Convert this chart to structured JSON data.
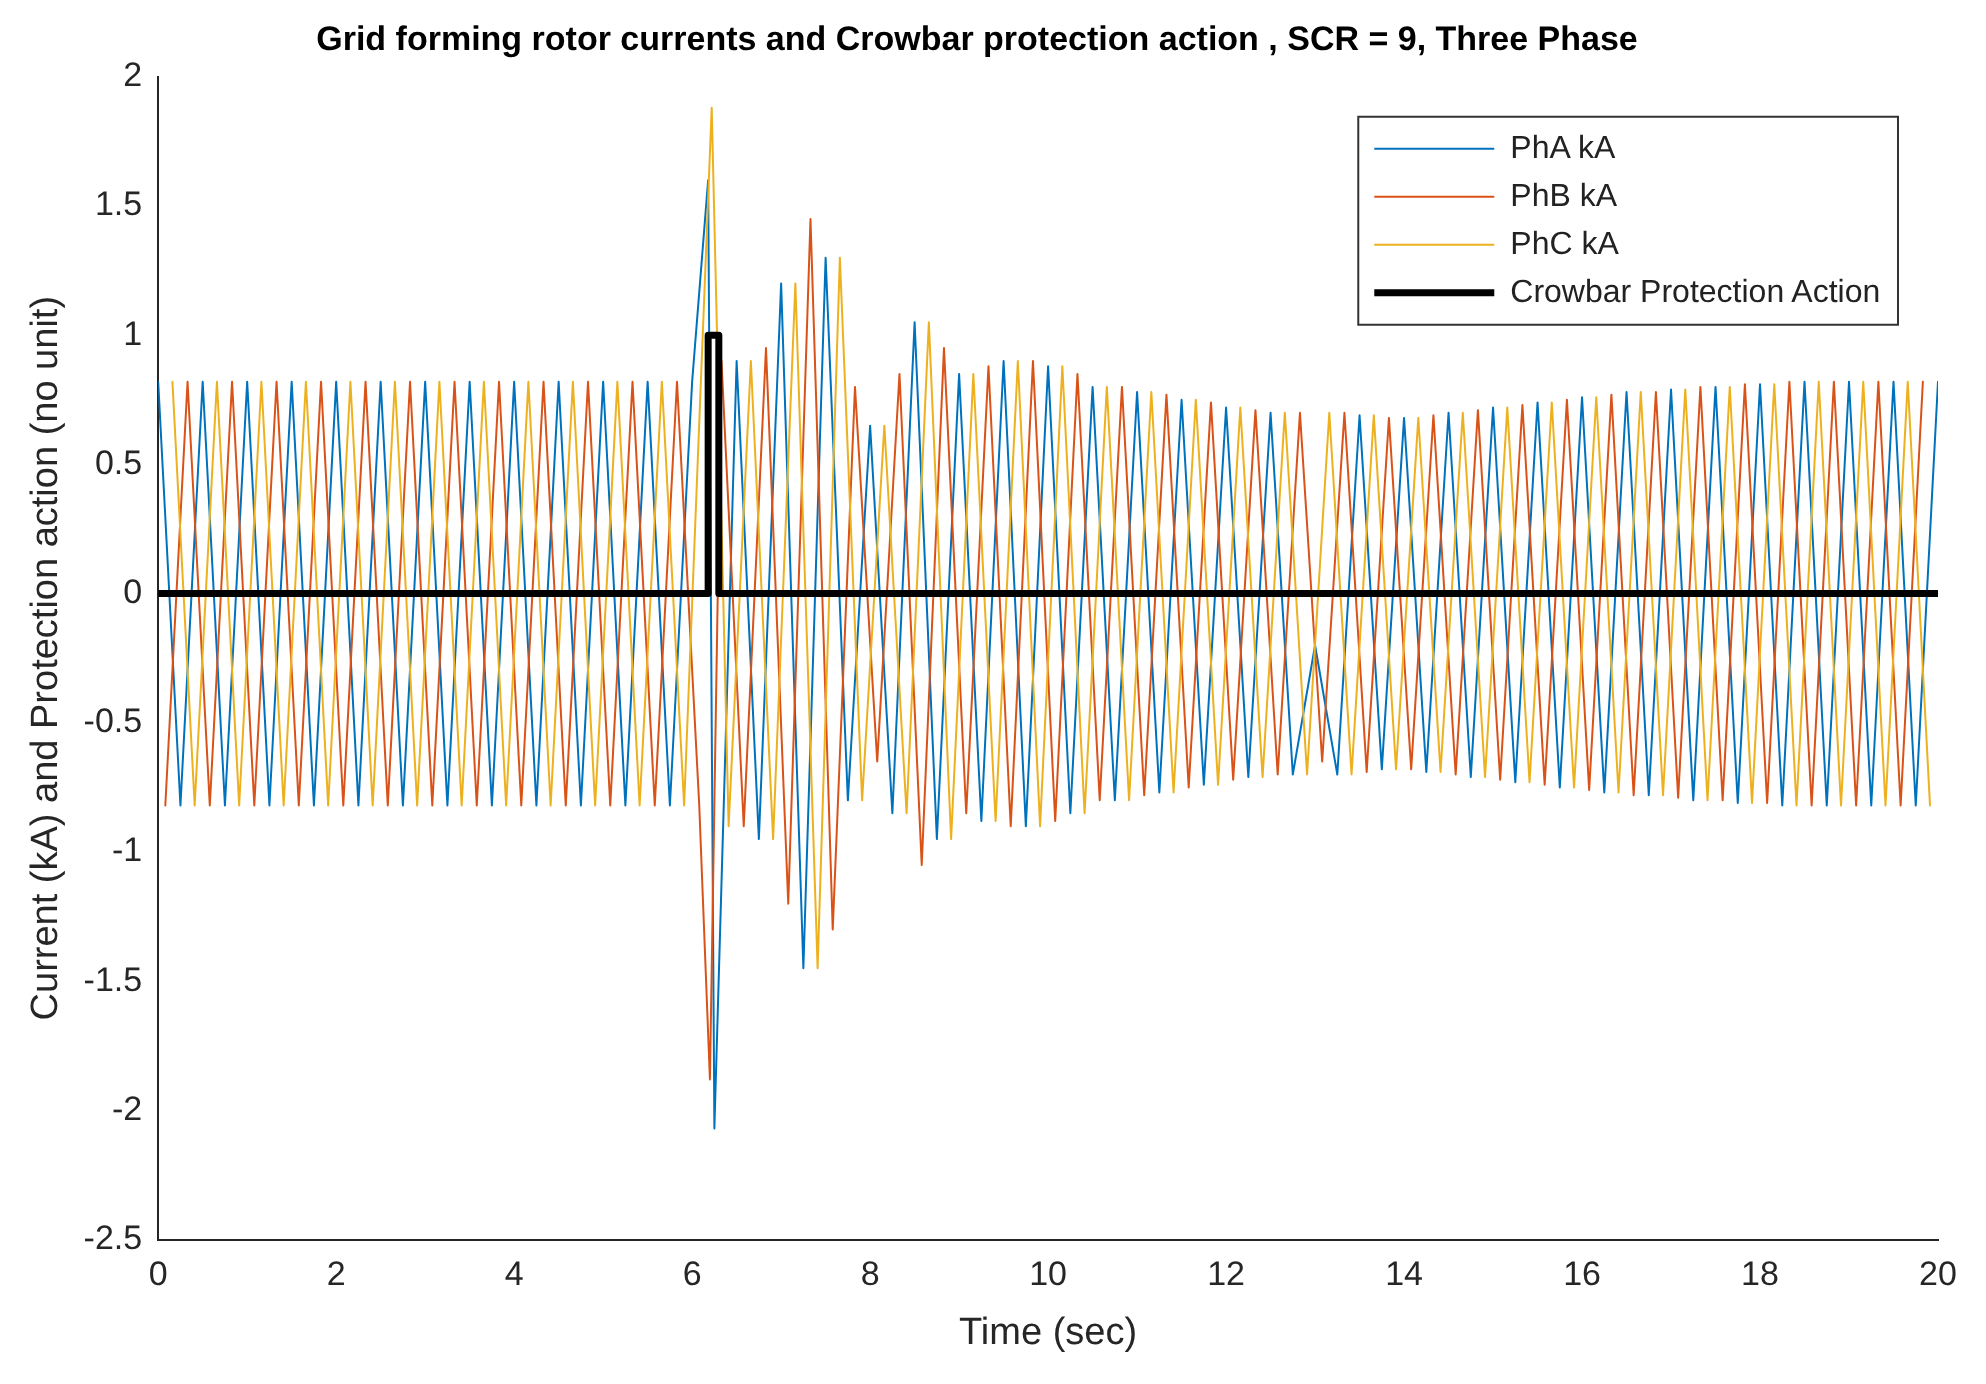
{
  "chart_data": {
    "type": "line",
    "title": "Grid forming rotor currents and Crowbar protection action , SCR = 9, Three Phase",
    "xlabel": "Time (sec)",
    "ylabel": "Current (kA) and Protection action (no unit)",
    "xlim": [
      0,
      20
    ],
    "xticks": [
      0,
      2,
      4,
      6,
      8,
      10,
      12,
      14,
      16,
      18,
      20
    ],
    "ylim": [
      -2.5,
      2
    ],
    "yticks": [
      -2.5,
      -2,
      -1.5,
      -1,
      -0.5,
      0,
      0.5,
      1,
      1.5,
      2
    ],
    "grid": false,
    "legend": "top right",
    "marker": "none",
    "line_style": "solid",
    "series": [
      {
        "name": "PhA kA",
        "color": "#0072bd",
        "x": [
          0,
          0.25,
          0.5,
          0.75,
          1,
          1.25,
          1.5,
          1.75,
          2,
          2.25,
          2.5,
          2.75,
          3,
          3.25,
          3.5,
          3.75,
          4,
          4.25,
          4.5,
          4.75,
          5,
          5.25,
          5.5,
          5.75,
          6,
          6.18,
          6.25,
          6.5,
          6.75,
          7,
          7.25,
          7.5,
          7.75,
          8,
          8.25,
          8.5,
          8.75,
          9,
          9.25,
          9.5,
          9.75,
          10,
          10.25,
          10.5,
          10.75,
          11,
          11.25,
          11.5,
          11.75,
          12,
          12.25,
          12.5,
          12.75,
          13,
          13.25,
          13.5,
          13.75,
          14,
          14.25,
          14.5,
          14.75,
          15,
          15.25,
          15.5,
          15.75,
          16,
          16.25,
          16.5,
          16.75,
          17,
          17.25,
          17.5,
          17.75,
          18,
          18.25,
          18.5,
          18.75,
          19,
          19.25,
          19.5,
          19.75,
          20
        ],
        "values": [
          0.82,
          -0.82,
          0.82,
          -0.82,
          0.82,
          -0.82,
          0.82,
          -0.82,
          0.82,
          -0.82,
          0.82,
          -0.82,
          0.82,
          -0.82,
          0.82,
          -0.82,
          0.82,
          -0.82,
          0.82,
          -0.82,
          0.82,
          -0.82,
          0.82,
          -0.82,
          0.82,
          1.6,
          -2.07,
          0.9,
          -0.95,
          1.2,
          -1.45,
          1.3,
          -0.8,
          0.65,
          -0.85,
          1.05,
          -0.95,
          0.85,
          -0.88,
          0.9,
          -0.9,
          0.88,
          -0.85,
          0.8,
          -0.8,
          0.78,
          -0.77,
          0.75,
          -0.74,
          0.72,
          -0.71,
          0.7,
          -0.7,
          -0.2,
          -0.7,
          0.69,
          -0.68,
          0.68,
          -0.69,
          0.7,
          -0.71,
          0.72,
          -0.73,
          0.74,
          -0.75,
          0.76,
          -0.77,
          0.78,
          -0.78,
          0.79,
          -0.8,
          0.8,
          -0.81,
          0.81,
          -0.82,
          0.82,
          -0.82,
          0.82,
          -0.82,
          0.82,
          -0.82,
          0.82
        ]
      },
      {
        "name": "PhB kA",
        "color": "#d95319",
        "x": [
          0.08,
          0.33,
          0.58,
          0.83,
          1.08,
          1.33,
          1.58,
          1.83,
          2.08,
          2.33,
          2.58,
          2.83,
          3.08,
          3.33,
          3.58,
          3.83,
          4.08,
          4.33,
          4.58,
          4.83,
          5.08,
          5.33,
          5.58,
          5.83,
          6.08,
          6.2,
          6.33,
          6.58,
          6.83,
          7.08,
          7.33,
          7.58,
          7.83,
          8.08,
          8.33,
          8.58,
          8.83,
          9.08,
          9.33,
          9.58,
          9.83,
          10.08,
          10.33,
          10.58,
          10.83,
          11.08,
          11.33,
          11.58,
          11.83,
          12.08,
          12.33,
          12.58,
          12.83,
          13.08,
          13.33,
          13.58,
          13.83,
          14.08,
          14.33,
          14.58,
          14.83,
          15.08,
          15.33,
          15.58,
          15.83,
          16.08,
          16.33,
          16.58,
          16.83,
          17.08,
          17.33,
          17.58,
          17.83,
          18.08,
          18.33,
          18.58,
          18.83,
          19.08,
          19.33,
          19.58,
          19.83
        ],
        "values": [
          -0.82,
          0.82,
          -0.82,
          0.82,
          -0.82,
          0.82,
          -0.82,
          0.82,
          -0.82,
          0.82,
          -0.82,
          0.82,
          -0.82,
          0.82,
          -0.82,
          0.82,
          -0.82,
          0.82,
          -0.82,
          0.82,
          -0.82,
          0.82,
          -0.82,
          0.82,
          -0.82,
          -1.88,
          0.9,
          -0.9,
          0.95,
          -1.2,
          1.45,
          -1.3,
          0.8,
          -0.65,
          0.85,
          -1.05,
          0.95,
          -0.85,
          0.88,
          -0.9,
          0.9,
          -0.88,
          0.85,
          -0.8,
          0.8,
          -0.78,
          0.77,
          -0.75,
          0.74,
          -0.72,
          0.71,
          -0.7,
          0.7,
          -0.65,
          0.7,
          -0.69,
          0.68,
          -0.68,
          0.69,
          -0.7,
          0.71,
          -0.72,
          0.73,
          -0.74,
          0.75,
          -0.76,
          0.77,
          -0.78,
          0.78,
          -0.79,
          0.8,
          -0.8,
          0.81,
          -0.81,
          0.82,
          -0.82,
          0.82,
          -0.82,
          0.82,
          -0.82,
          0.82
        ]
      },
      {
        "name": "PhC kA",
        "color": "#edb120",
        "x": [
          0.16,
          0.41,
          0.66,
          0.91,
          1.16,
          1.41,
          1.66,
          1.91,
          2.16,
          2.41,
          2.66,
          2.91,
          3.16,
          3.41,
          3.66,
          3.91,
          4.16,
          4.41,
          4.66,
          4.91,
          5.16,
          5.41,
          5.66,
          5.91,
          6.22,
          6.41,
          6.66,
          6.91,
          7.16,
          7.41,
          7.66,
          7.91,
          8.16,
          8.41,
          8.66,
          8.91,
          9.16,
          9.41,
          9.66,
          9.91,
          10.16,
          10.41,
          10.66,
          10.91,
          11.16,
          11.41,
          11.66,
          11.91,
          12.16,
          12.41,
          12.66,
          12.91,
          13.16,
          13.41,
          13.66,
          13.91,
          14.16,
          14.41,
          14.66,
          14.91,
          15.16,
          15.41,
          15.66,
          15.91,
          16.16,
          16.41,
          16.66,
          16.91,
          17.16,
          17.41,
          17.66,
          17.91,
          18.16,
          18.41,
          18.66,
          18.91,
          19.16,
          19.41,
          19.66,
          19.91
        ],
        "values": [
          0.82,
          -0.82,
          0.82,
          -0.82,
          0.82,
          -0.82,
          0.82,
          -0.82,
          0.82,
          -0.82,
          0.82,
          -0.82,
          0.82,
          -0.82,
          0.82,
          -0.82,
          0.82,
          -0.82,
          0.82,
          -0.82,
          0.82,
          -0.82,
          0.82,
          -0.82,
          1.88,
          -0.9,
          0.9,
          -0.95,
          1.2,
          -1.45,
          1.3,
          -0.8,
          0.65,
          -0.85,
          1.05,
          -0.95,
          0.85,
          -0.88,
          0.9,
          -0.9,
          0.88,
          -0.85,
          0.8,
          -0.8,
          0.78,
          -0.77,
          0.75,
          -0.74,
          0.72,
          -0.71,
          0.7,
          -0.7,
          0.7,
          -0.7,
          0.69,
          -0.68,
          0.68,
          -0.69,
          0.7,
          -0.71,
          0.72,
          -0.73,
          0.74,
          -0.75,
          0.76,
          -0.77,
          0.78,
          -0.78,
          0.79,
          -0.8,
          0.8,
          -0.81,
          0.81,
          -0.82,
          0.82,
          -0.82,
          0.82,
          -0.82,
          0.82,
          -0.82
        ]
      },
      {
        "name": "Crowbar Protection Action",
        "color": "#000000",
        "x": [
          0,
          6.18,
          6.18,
          6.3,
          6.3,
          20
        ],
        "values": [
          0,
          0,
          1,
          1,
          0,
          0
        ]
      }
    ]
  }
}
